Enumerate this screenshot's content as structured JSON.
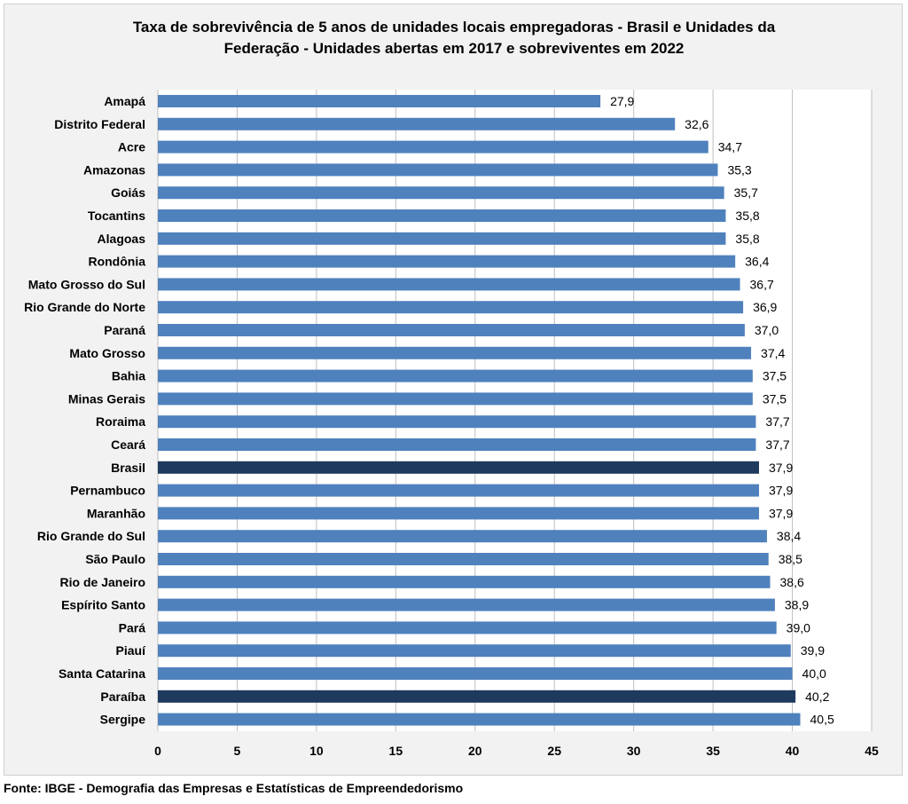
{
  "chart_data": {
    "type": "bar",
    "orientation": "horizontal",
    "title_line1": "Taxa de sobrevivência de 5 anos de unidades locais empregadoras - Brasil e Unidades da",
    "title_line2": "Federação - Unidades abertas em 2017 e sobreviventes em 2022",
    "xlabel": "",
    "ylabel": "",
    "xlim": [
      0,
      45
    ],
    "ticks": [
      "0",
      "5",
      "10",
      "15",
      "20",
      "25",
      "30",
      "35",
      "40",
      "45"
    ],
    "grid": true,
    "legend": "none",
    "colors": {
      "default": "#4f81bd",
      "highlight": "#1f3a5f",
      "plot_bg": "#ffffff",
      "frame_bg": "#f2f2f2",
      "grid": "#bfbfbf"
    },
    "categories": [
      "Amapá",
      "Distrito Federal",
      "Acre",
      "Amazonas",
      "Goiás",
      "Tocantins",
      "Alagoas",
      "Rondônia",
      "Mato Grosso do Sul",
      "Rio Grande do Norte",
      "Paraná",
      "Mato Grosso",
      "Bahia",
      "Minas Gerais",
      "Roraima",
      "Ceará",
      "Brasil",
      "Pernambuco",
      "Maranhão",
      "Rio Grande do Sul",
      "São Paulo",
      "Rio de Janeiro",
      "Espírito Santo",
      "Pará",
      "Piauí",
      "Santa Catarina",
      "Paraíba",
      "Sergipe"
    ],
    "values": [
      27.9,
      32.6,
      34.7,
      35.3,
      35.7,
      35.8,
      35.8,
      36.4,
      36.7,
      36.9,
      37.0,
      37.4,
      37.5,
      37.5,
      37.7,
      37.7,
      37.9,
      37.9,
      37.9,
      38.4,
      38.5,
      38.6,
      38.9,
      39.0,
      39.9,
      40.0,
      40.2,
      40.5
    ],
    "value_labels": [
      "27,9",
      "32,6",
      "34,7",
      "35,3",
      "35,7",
      "35,8",
      "35,8",
      "36,4",
      "36,7",
      "36,9",
      "37,0",
      "37,4",
      "37,5",
      "37,5",
      "37,7",
      "37,7",
      "37,9",
      "37,9",
      "37,9",
      "38,4",
      "38,5",
      "38,6",
      "38,9",
      "39,0",
      "39,9",
      "40,0",
      "40,2",
      "40,5"
    ],
    "highlighted": [
      "Brasil",
      "Paraíba"
    ]
  },
  "source": "Fonte: IBGE - Demografia das Empresas e Estatísticas de Empreendedorismo"
}
